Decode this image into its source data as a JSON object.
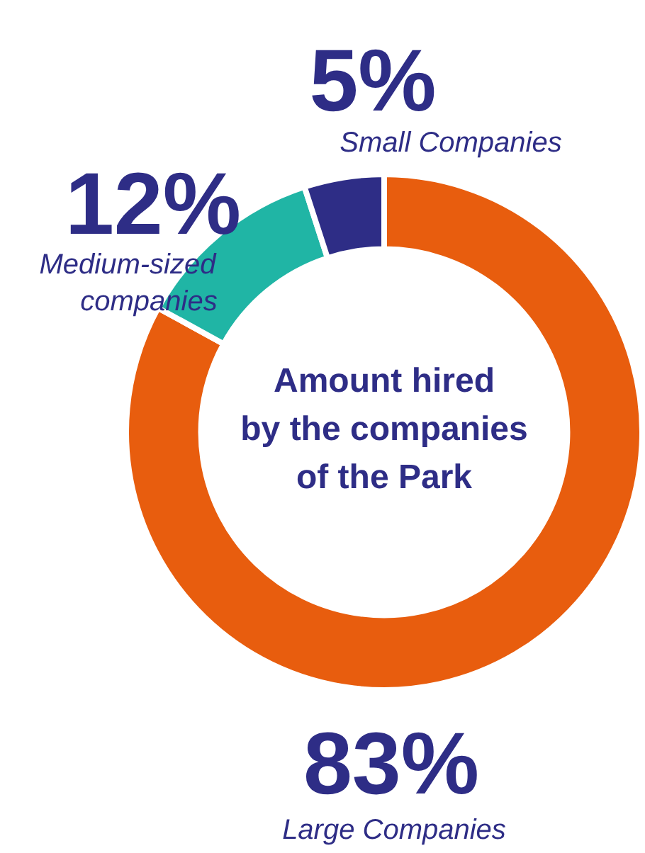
{
  "chart_data": {
    "type": "donut",
    "title": "Amount hired\nby the companies\nof the Park",
    "categories": [
      "Large Companies",
      "Medium-sized\ncompanies",
      "Small Companies"
    ],
    "values": [
      83,
      12,
      5
    ],
    "colors": [
      "#e85d0e",
      "#20b5a5",
      "#2e2d86"
    ],
    "value_labels": [
      "83%",
      "12%",
      "5%"
    ],
    "legend": false
  }
}
